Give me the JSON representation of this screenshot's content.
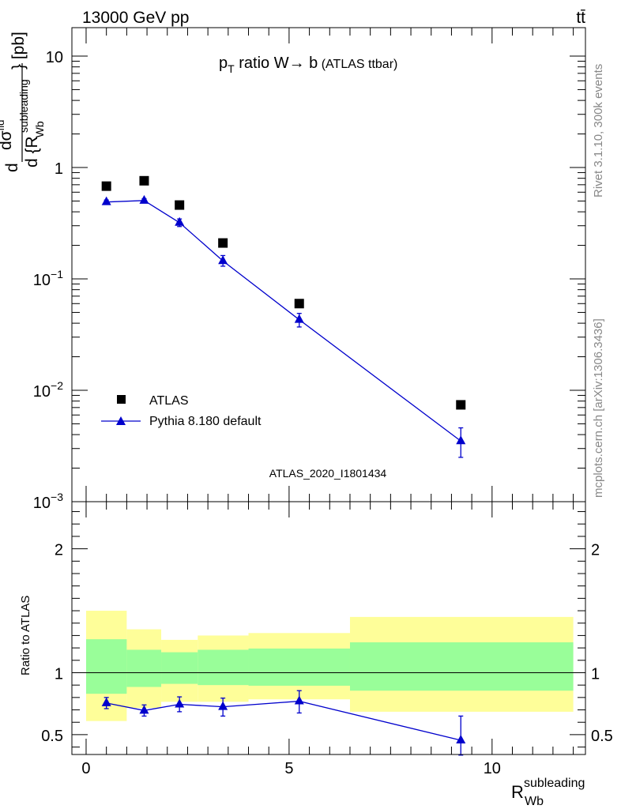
{
  "header": {
    "energy_label": "13000 GeV pp",
    "process_label": "tt̄"
  },
  "side_labels": {
    "rivet": "Rivet 3.1.10,  300k events",
    "mcplots": "mcplots.cern.ch [arXiv:1306.3436]"
  },
  "chart_data": [
    {
      "type": "scatter",
      "title": "p_T ratio W → b (ATLAS ttbar)",
      "title_parts": {
        "p": "p",
        "sub": "T",
        "rest": " ratio W",
        "arrow": "→",
        "b": " b",
        "small": " (ATLAS ttbar)"
      },
      "ylabel": "d σ^fid / d {R_Wb^subleading} [pb]",
      "ylabel_parts": {
        "d1": "d",
        "frac_top": "dσ",
        "frac_top_sup": "fid",
        "d2": "d {R",
        "sub": "Wb",
        "sup": "subleading",
        "close": "} [pb]"
      },
      "yscale": "log",
      "ylim": [
        0.001,
        18
      ],
      "xlim": [
        -0.35,
        12.3
      ],
      "yticks": [
        {
          "value": 10,
          "base": "10",
          "exp": ""
        },
        {
          "value": 1,
          "base": "1",
          "exp": ""
        },
        {
          "value": 0.1,
          "base": "10",
          "exp": "−1"
        },
        {
          "value": 0.01,
          "base": "10",
          "exp": "−2"
        },
        {
          "value": 0.001,
          "base": "10",
          "exp": "−3"
        }
      ],
      "watermark": "ATLAS_2020_I1801434",
      "legend_position": "bottom-left",
      "series": [
        {
          "name": "ATLAS",
          "marker": "square",
          "color": "#000000",
          "x": [
            0.5,
            1.43,
            2.3,
            3.37,
            5.25,
            9.23
          ],
          "y": [
            0.68,
            0.76,
            0.46,
            0.21,
            0.06,
            0.0074
          ]
        },
        {
          "name": "Pythia 8.180 default",
          "marker": "triangle",
          "color": "#0000cc",
          "x": [
            0.5,
            1.43,
            2.3,
            3.37,
            5.25,
            9.23
          ],
          "y": [
            0.49,
            0.505,
            0.32,
            0.145,
            0.043,
            0.0035
          ],
          "yerr_low": [
            0.02,
            0.02,
            0.025,
            0.015,
            0.006,
            0.001
          ],
          "yerr_high": [
            0.02,
            0.02,
            0.025,
            0.017,
            0.006,
            0.0011
          ]
        }
      ]
    },
    {
      "type": "scatter",
      "ylabel": "Ratio to ATLAS",
      "xlabel": "R_Wb^subleading",
      "xlabel_parts": {
        "main": "R",
        "sub": "Wb",
        "sup": "subleading"
      },
      "ylim": [
        0.34,
        2.38
      ],
      "xlim": [
        -0.35,
        12.3
      ],
      "yticks": [
        0.5,
        1,
        2
      ],
      "xticks": [
        0,
        5,
        10
      ],
      "reference_line": 1,
      "bands": [
        {
          "x_low": 0,
          "x_high": 1.0,
          "yellow": [
            0.61,
            1.5
          ],
          "green": [
            0.83,
            1.27
          ]
        },
        {
          "x_low": 1.0,
          "x_high": 1.85,
          "yellow": [
            0.715,
            1.35
          ],
          "green": [
            0.885,
            1.185
          ]
        },
        {
          "x_low": 1.85,
          "x_high": 2.75,
          "yellow": [
            0.765,
            1.265
          ],
          "green": [
            0.91,
            1.165
          ]
        },
        {
          "x_low": 2.75,
          "x_high": 4.0,
          "yellow": [
            0.765,
            1.3
          ],
          "green": [
            0.9,
            1.185
          ]
        },
        {
          "x_low": 4.0,
          "x_high": 6.5,
          "yellow": [
            0.785,
            1.32
          ],
          "green": [
            0.895,
            1.195
          ]
        },
        {
          "x_low": 6.5,
          "x_high": 12.0,
          "yellow": [
            0.685,
            1.45
          ],
          "green": [
            0.855,
            1.245
          ]
        }
      ],
      "series": [
        {
          "name": "Pythia 8.180 default",
          "marker": "triangle",
          "color": "#0000cc",
          "x": [
            0.5,
            1.43,
            2.3,
            3.37,
            5.25,
            9.23
          ],
          "y": [
            0.755,
            0.695,
            0.745,
            0.725,
            0.77,
            0.455
          ],
          "yerr_low": [
            0.045,
            0.045,
            0.06,
            0.075,
            0.095,
            0.12
          ],
          "yerr_high": [
            0.045,
            0.045,
            0.06,
            0.07,
            0.085,
            0.195
          ]
        }
      ]
    }
  ],
  "colors": {
    "yellow_band": "#fefe99",
    "green_band": "#99fe99",
    "mc_line": "#0000cc",
    "watermark": "#999999",
    "side_text": "#888888"
  }
}
